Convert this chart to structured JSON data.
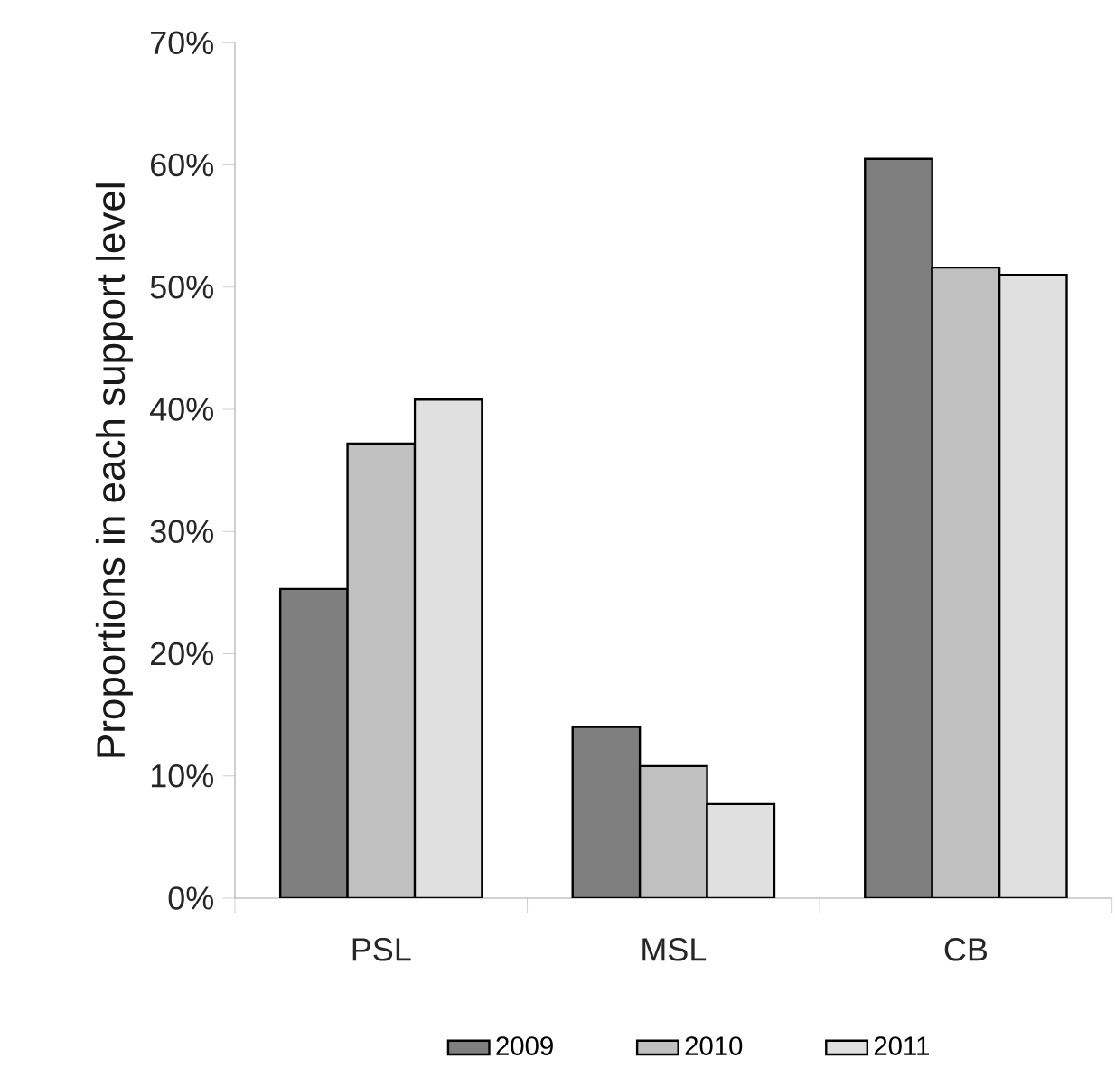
{
  "chart_data": {
    "type": "bar",
    "ylabel": "Proportions in each support level",
    "categories": [
      "PSL",
      "MSL",
      "CB"
    ],
    "series": [
      {
        "name": "2009",
        "color": "#7f7f7f",
        "values": [
          25.3,
          14.0,
          60.5
        ]
      },
      {
        "name": "2010",
        "color": "#c0c0c0",
        "values": [
          37.2,
          10.8,
          51.6
        ]
      },
      {
        "name": "2011",
        "color": "#e0e0e0",
        "values": [
          40.8,
          7.7,
          51.0
        ]
      }
    ],
    "ylim": [
      0,
      70
    ],
    "yticks": [
      {
        "value": 0,
        "label": "0%"
      },
      {
        "value": 10,
        "label": "10%"
      },
      {
        "value": 20,
        "label": "20%"
      },
      {
        "value": 30,
        "label": "30%"
      },
      {
        "value": 40,
        "label": "40%"
      },
      {
        "value": 50,
        "label": "50%"
      },
      {
        "value": 60,
        "label": "60%"
      },
      {
        "value": 70,
        "label": "70%"
      }
    ],
    "grid": false,
    "legend": "bottom"
  }
}
